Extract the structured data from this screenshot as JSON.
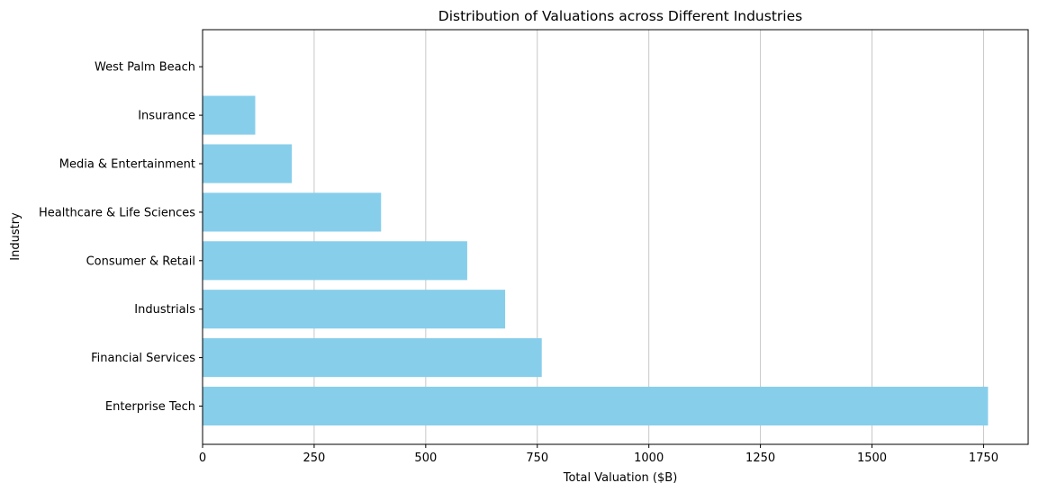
{
  "chart_data": {
    "type": "bar",
    "orientation": "horizontal",
    "title": "Distribution of Valuations across Different Industries",
    "xlabel": "Total Valuation ($B)",
    "ylabel": "Industry",
    "categories": [
      "Enterprise Tech",
      "Financial Services",
      "Industrials",
      "Consumer & Retail",
      "Healthcare & Life Sciences",
      "Media & Entertainment",
      "Insurance",
      "West Palm Beach"
    ],
    "values": [
      1760,
      760,
      678,
      593,
      400,
      200,
      118,
      0
    ],
    "xlim": [
      0,
      1850
    ],
    "xticks": [
      0,
      250,
      500,
      750,
      1000,
      1250,
      1500,
      1750
    ],
    "grid": "x",
    "bar_color": "#87CEEB"
  }
}
